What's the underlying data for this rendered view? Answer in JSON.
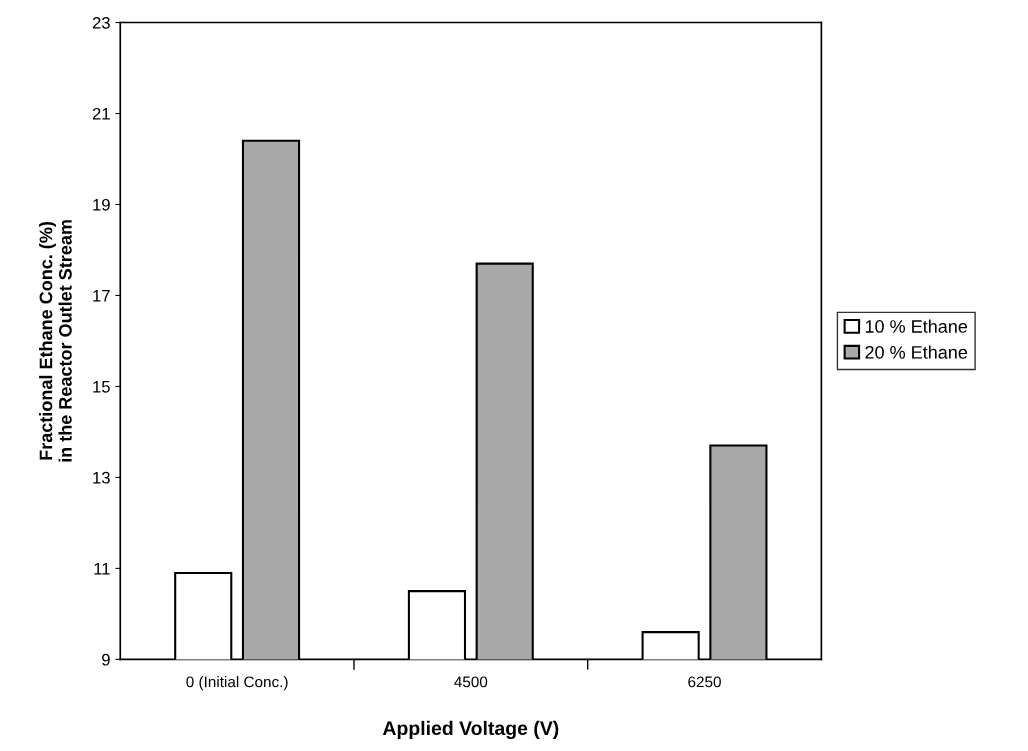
{
  "chart_data": {
    "type": "bar",
    "xlabel": "Applied Voltage (V)",
    "ylabel": "Fractional Ethane Conc. (%)\nin the Reactor Outlet Stream",
    "categories": [
      "0 (Initial Conc.)",
      "4500",
      "6250"
    ],
    "series": [
      {
        "name": "10 % Ethane",
        "color": "#ffffff",
        "values": [
          10.9,
          10.5,
          9.6
        ]
      },
      {
        "name": "20 % Ethane",
        "color": "#a9a9a9",
        "values": [
          20.4,
          17.7,
          13.7
        ]
      }
    ],
    "ylim": [
      9,
      23
    ],
    "yticks": [
      9,
      11,
      13,
      15,
      17,
      19,
      21,
      23
    ],
    "grid": false,
    "legend": "right"
  }
}
